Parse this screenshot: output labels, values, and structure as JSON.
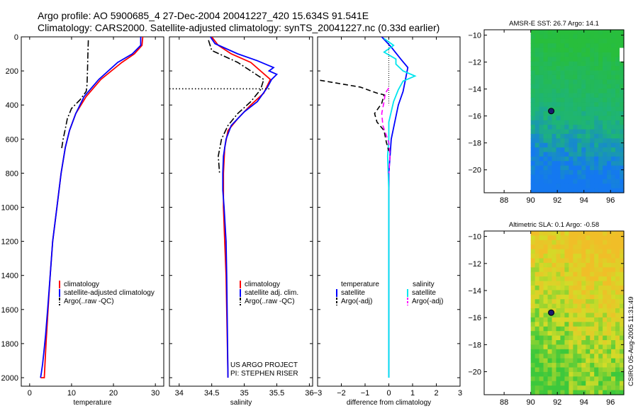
{
  "title": {
    "line1": "Argo profile: AO 5900685_4 27-Dec-2004 20041227_420 15.634S 91.541E",
    "line2": "Climatology: CARS2000. Satellite-adjusted climatology: synTS_20041227.nc (0.33d earlier)"
  },
  "side_stamp": "CSIRO 05-Aug-2005 11:31:49",
  "colors": {
    "climatology": "#ff0000",
    "satellite": "#0000ff",
    "argo": "#000000",
    "salinity_sat": "#00e5ee",
    "salinity_argo": "#ff00ff"
  },
  "chart_data": [
    {
      "type": "line",
      "id": "temperature",
      "xlabel": "temperature",
      "ylabel": "",
      "xlim": [
        -2,
        32
      ],
      "ylim": [
        2050,
        0
      ],
      "xticks": [
        0,
        10,
        20,
        30
      ],
      "yticks": [
        0,
        200,
        400,
        600,
        800,
        1000,
        1200,
        1400,
        1600,
        1800,
        2000
      ],
      "legend": [
        "climatology",
        "satellite-adjusted climatology",
        "Argo(..raw -QC)"
      ],
      "series": [
        {
          "name": "climatology",
          "color": "#ff0000",
          "style": "solid",
          "x": [
            27.0,
            26.8,
            25.0,
            22.0,
            17.0,
            13.5,
            11.0,
            9.5,
            8.5,
            7.5,
            6.5,
            5.5,
            4.9,
            4.4,
            3.9,
            3.5,
            3.1,
            2.8,
            2.6
          ],
          "y": [
            0,
            50,
            100,
            150,
            250,
            350,
            450,
            550,
            650,
            800,
            1000,
            1200,
            1400,
            1600,
            1800,
            2000,
            2000,
            2000,
            2000
          ]
        },
        {
          "name": "satellite-adjusted climatology",
          "color": "#0000ff",
          "style": "solid",
          "x": [
            26.5,
            26.5,
            24.5,
            21.0,
            16.5,
            13.0,
            11.0,
            9.5,
            8.5,
            7.5,
            6.5,
            5.5,
            4.9,
            4.3,
            3.8,
            3.4,
            3.1,
            2.8,
            2.6
          ],
          "y": [
            0,
            50,
            100,
            150,
            250,
            350,
            450,
            550,
            650,
            800,
            1000,
            1200,
            1400,
            1600,
            1750,
            1850,
            1920,
            1970,
            2000
          ]
        },
        {
          "name": "Argo(..raw -QC)",
          "color": "#000000",
          "style": "dashdot",
          "x": [
            14.0,
            13.9,
            13.8,
            13.7,
            13.5,
            12.0,
            10.0,
            9.0,
            8.5,
            8.0,
            7.6
          ],
          "y": [
            20,
            100,
            200,
            280,
            320,
            370,
            420,
            480,
            540,
            600,
            660
          ]
        }
      ]
    },
    {
      "type": "line",
      "id": "salinity",
      "xlabel": "salinity",
      "ylabel": "",
      "xlim": [
        33.85,
        36.05
      ],
      "ylim": [
        2050,
        0
      ],
      "xticks": [
        34,
        34.5,
        35,
        35.5,
        36
      ],
      "yticks": [],
      "legend": [
        "climatology",
        "satellite adj. clim.",
        "Argo(..raw -QC)"
      ],
      "annotation": [
        "US ARGO PROJECT",
        "PI: STEPHEN RISER"
      ],
      "series": [
        {
          "name": "climatology",
          "color": "#ff0000",
          "style": "solid",
          "x": [
            34.5,
            34.6,
            34.8,
            35.1,
            35.4,
            35.3,
            35.1,
            34.9,
            34.75,
            34.7,
            34.68,
            34.68,
            34.7,
            34.72,
            34.73,
            34.74,
            34.75
          ],
          "y": [
            0,
            50,
            100,
            150,
            250,
            330,
            400,
            480,
            550,
            650,
            800,
            1000,
            1200,
            1400,
            1600,
            1800,
            2000
          ]
        },
        {
          "name": "satellite adj. clim.",
          "color": "#0000ff",
          "style": "solid",
          "x": [
            34.48,
            34.55,
            34.9,
            35.2,
            35.45,
            35.38,
            35.5,
            35.42,
            35.35,
            35.2,
            35.0,
            34.8,
            34.72,
            34.68,
            34.67,
            34.67,
            34.69,
            34.72,
            34.73,
            34.74,
            34.75
          ],
          "y": [
            0,
            40,
            100,
            140,
            180,
            200,
            220,
            250,
            300,
            380,
            440,
            520,
            600,
            700,
            800,
            900,
            1000,
            1200,
            1400,
            1700,
            2000
          ]
        },
        {
          "name": "Argo(..raw -QC)",
          "color": "#000000",
          "style": "dashdot",
          "x": [
            34.45,
            34.5,
            34.9,
            35.3,
            35.25,
            35.1,
            34.9,
            34.75,
            34.65,
            34.6,
            34.62
          ],
          "y": [
            20,
            80,
            150,
            250,
            310,
            380,
            450,
            520,
            600,
            700,
            800
          ]
        },
        {
          "name": "Argo bad value",
          "color": "#000000",
          "style": "dotted",
          "x": [
            33.85,
            35.4
          ],
          "y": [
            305,
            305
          ]
        }
      ]
    },
    {
      "type": "line",
      "id": "difference",
      "xlabel": "difference from climatology",
      "ylabel": "",
      "xlim": [
        -3,
        3
      ],
      "ylim": [
        2050,
        0
      ],
      "xticks": [
        -3,
        -2,
        -1,
        0,
        1,
        2,
        3
      ],
      "yticks": [],
      "legend": [
        "temperature",
        "satellite",
        "Argo(-adj)",
        "salinity",
        "satellite",
        "Argo(-adj)"
      ],
      "series": [
        {
          "name": "temperature satellite",
          "color": "#0000ff",
          "style": "solid",
          "x": [
            -0.3,
            0.1,
            0.5,
            0.8,
            0.7,
            0.6,
            0.4,
            0.25,
            0.1,
            0.05,
            0.0,
            0.0,
            0.0,
            0.0,
            0.0
          ],
          "y": [
            0,
            60,
            130,
            180,
            250,
            320,
            400,
            500,
            600,
            700,
            800,
            1000,
            1400,
            1800,
            2000
          ]
        },
        {
          "name": "salinity satellite",
          "color": "#00e5ee",
          "style": "solid",
          "x": [
            -0.2,
            0.2,
            -0.2,
            0.3,
            0.3,
            0.6,
            1.1,
            0.6,
            0.4,
            0.2,
            0.0,
            0.0,
            -0.05,
            0.0,
            0.0,
            0.0,
            0.0,
            0.0
          ],
          "y": [
            10,
            50,
            90,
            130,
            160,
            200,
            230,
            260,
            310,
            380,
            500,
            600,
            700,
            900,
            1000,
            1400,
            1800,
            2000
          ]
        },
        {
          "name": "temperature Argo(-adj)",
          "color": "#000000",
          "style": "dashed",
          "x": [
            -2.9,
            -1.2,
            -0.5,
            -0.2,
            -0.3,
            -0.6,
            -0.5,
            -0.2,
            -0.1,
            0.0
          ],
          "y": [
            255,
            295,
            330,
            340,
            390,
            450,
            500,
            550,
            620,
            670
          ]
        },
        {
          "name": "salinity Argo(-adj)",
          "color": "#ff00ff",
          "style": "dashed",
          "x": [
            0.0,
            -0.15,
            -0.2,
            -0.3,
            -0.25,
            -0.1,
            0.0,
            0.05,
            0.0
          ],
          "y": [
            300,
            330,
            380,
            450,
            520,
            580,
            620,
            700,
            800
          ]
        }
      ]
    },
    {
      "type": "heatmap",
      "id": "sst_map",
      "title": "AMSR-E SST: 26.7 Argo: 14.1",
      "xlim": [
        86.5,
        97
      ],
      "ylim": [
        -21.7,
        -9.6
      ],
      "xticks": [
        88,
        90,
        92,
        94,
        96
      ],
      "yticks": [
        -10,
        -12,
        -14,
        -16,
        -18,
        -20
      ],
      "marker": {
        "lon": 91.541,
        "lat": -15.634
      }
    },
    {
      "type": "heatmap",
      "id": "sla_map",
      "title": "Altimetric SLA: 0.1 Argo: -0.58",
      "xlim": [
        86.5,
        97
      ],
      "ylim": [
        -21.7,
        -9.6
      ],
      "xticks": [
        88,
        90,
        92,
        94,
        96
      ],
      "yticks": [
        -10,
        -12,
        -14,
        -16,
        -18,
        -20
      ],
      "marker": {
        "lon": 91.541,
        "lat": -15.634
      }
    }
  ]
}
